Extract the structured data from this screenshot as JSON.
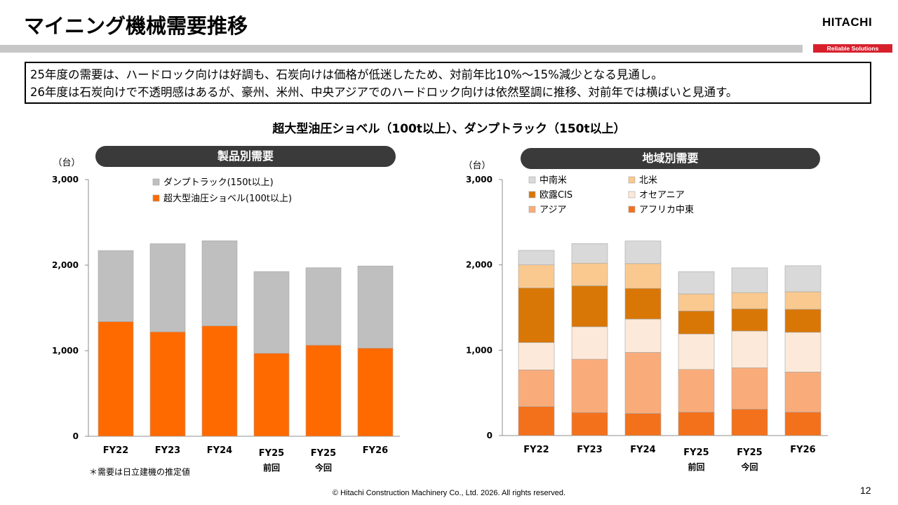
{
  "header": {
    "title": "マイニング機械需要推移",
    "logo": "HITACHI",
    "tagline": "Reliable Solutions"
  },
  "summary": {
    "line1": "25年度の需要は、ハードロック向けは好調も、石炭向けは価格が低迷したため、対前年比10%～15%減少となる見通し。",
    "line2": "26年度は石炭向けで不透明感はあるが、豪州、米州、中央アジアでのハードロック向けは依然堅調に推移、対前年では横ばいと見通す。"
  },
  "subtitle": "超大型油圧ショベル（100t以上）、ダンプトラック（150t以上）",
  "footer": {
    "note": "＊需要は日立建機の推定値",
    "copyright": "© Hitachi Construction Machinery Co., Ltd. 2026. All rights reserved.",
    "page_number": "12"
  },
  "colors": {
    "excavator": "#ff6a00",
    "dump_truck": "#bfbfbf",
    "latin_america": "#d9d9d9",
    "north_america": "#fac98f",
    "europe_russia_cis": "#d97706",
    "oceania": "#fde9d9",
    "asia": "#f9ac7a",
    "africa_middle_east": "#f4711c"
  },
  "chart_data": [
    {
      "type": "bar",
      "stacked": true,
      "panel_title": "製品別需要",
      "unit_label": "（台）",
      "categories": [
        "FY22",
        "FY23",
        "FY24",
        "FY25",
        "FY25",
        "FY26"
      ],
      "category_sublabels": [
        "",
        "",
        "",
        "前回",
        "今回",
        ""
      ],
      "ylim": [
        0,
        3000
      ],
      "yticks": [
        "0",
        "1,000",
        "2,000",
        "3,000"
      ],
      "legend_placement": "top",
      "series": [
        {
          "name": "超大型油圧ショベル(100t以上)",
          "color_key": "excavator",
          "values": [
            1340,
            1220,
            1290,
            970,
            1065,
            1030
          ]
        },
        {
          "name": "ダンプトラック(150t以上)",
          "color_key": "dump_truck",
          "values": [
            830,
            1030,
            995,
            955,
            905,
            960
          ]
        }
      ]
    },
    {
      "type": "bar",
      "stacked": true,
      "panel_title": "地域別需要",
      "unit_label": "（台）",
      "categories": [
        "FY22",
        "FY23",
        "FY24",
        "FY25",
        "FY25",
        "FY26"
      ],
      "category_sublabels": [
        "",
        "",
        "",
        "前回",
        "今回",
        ""
      ],
      "ylim": [
        0,
        3000
      ],
      "yticks": [
        "0",
        "1,000",
        "2,000",
        "3,000"
      ],
      "legend_placement": "top-left",
      "series": [
        {
          "name": "アフリカ中東",
          "color_key": "africa_middle_east",
          "values": [
            340,
            270,
            260,
            275,
            310,
            275
          ]
        },
        {
          "name": "アジア",
          "color_key": "asia",
          "values": [
            430,
            625,
            715,
            500,
            485,
            470
          ]
        },
        {
          "name": "オセアニア",
          "color_key": "oceania",
          "values": [
            320,
            380,
            390,
            415,
            430,
            465
          ]
        },
        {
          "name": "欧露CIS",
          "color_key": "europe_russia_cis",
          "values": [
            640,
            480,
            360,
            270,
            260,
            270
          ]
        },
        {
          "name": "北米",
          "color_key": "north_america",
          "values": [
            270,
            265,
            290,
            200,
            190,
            205
          ]
        },
        {
          "name": "中南米",
          "color_key": "latin_america",
          "values": [
            170,
            230,
            265,
            260,
            290,
            305
          ]
        }
      ],
      "legend_order": [
        "中南米",
        "北米",
        "欧露CIS",
        "オセアニア",
        "アジア",
        "アフリカ中東"
      ]
    }
  ]
}
